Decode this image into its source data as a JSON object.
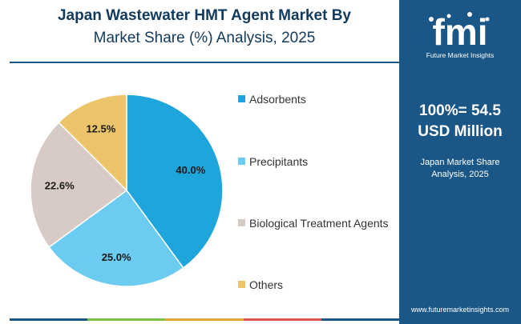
{
  "header": {
    "title_line1": "Japan Wastewater HMT Agent Market By",
    "title_line2": "Market Share (%) Analysis, 2025"
  },
  "side_panel": {
    "total_value_line1": "100%= 54.5",
    "total_value_line2": "USD Million",
    "subtitle_line1": "Japan Market Share",
    "subtitle_line2": "Analysis, 2025",
    "logo_word": "fmi",
    "logo_subtext": "Future Market Insights",
    "website": "www.futuremarketinsights.com",
    "background_color": "#1b5786"
  },
  "colors": {
    "title": "#123a5c",
    "accent_bar": [
      "#1b5786",
      "#7ac143",
      "#e8a23a",
      "#d9534f",
      "#1b5786"
    ]
  },
  "chart_data": {
    "type": "pie",
    "categories": [
      "Adsorbents",
      "Precipitants",
      "Biological Treatment Agents",
      "Others"
    ],
    "values": [
      40.0,
      25.0,
      22.6,
      12.5
    ],
    "labels": [
      "40.0%",
      "25.0%",
      "22.6%",
      "12.5%"
    ],
    "colors": [
      "#1ea5dc",
      "#6ccbf0",
      "#d8cbc6",
      "#ecc46a"
    ],
    "start_angle": "12 o'clock, clockwise",
    "legend_position": "right"
  }
}
